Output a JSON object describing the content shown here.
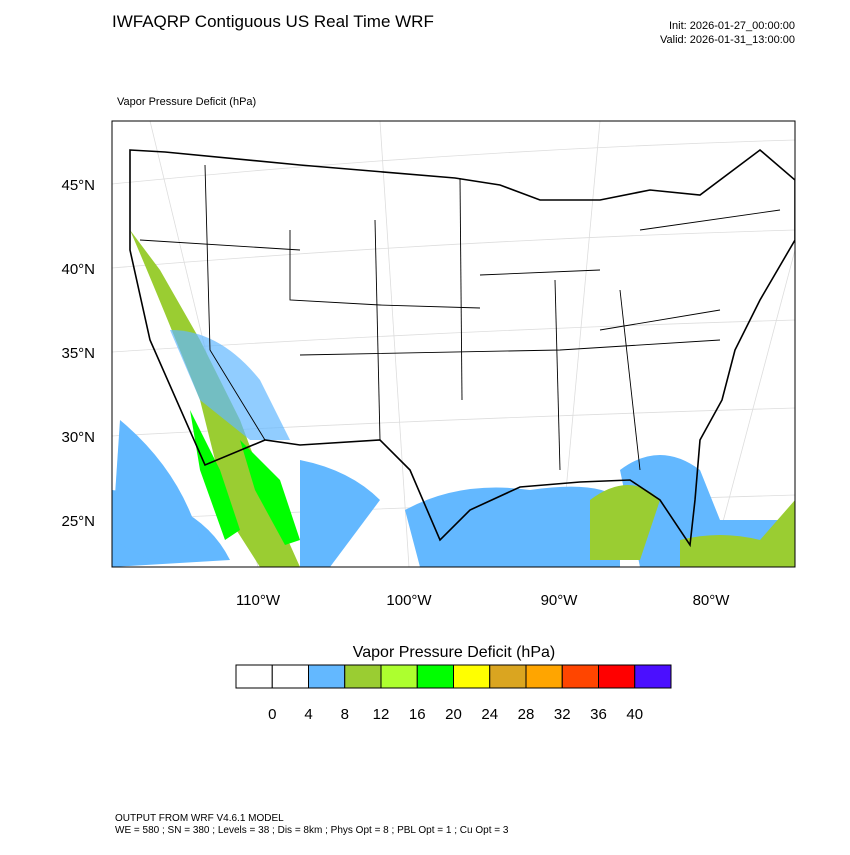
{
  "header": {
    "title": "IWFAQRP Contiguous US Real Time WRF",
    "init": "Init: 2026-01-27_00:00:00",
    "valid": "Valid: 2026-01-31_13:00:00"
  },
  "map": {
    "subtitle": "Vapor Pressure Deficit   (hPa)",
    "lat_labels": [
      "45°N",
      "40°N",
      "35°N",
      "30°N",
      "25°N"
    ],
    "lon_labels": [
      "110°W",
      "100°W",
      "90°W",
      "80°W"
    ]
  },
  "colorbar": {
    "title": "Vapor Pressure Deficit  (hPa)",
    "levels": [
      0,
      4,
      8,
      12,
      16,
      20,
      24,
      28,
      32,
      36,
      40
    ],
    "colors": [
      "#ffffff",
      "#ffffff",
      "#63b8ff",
      "#9acd32",
      "#adff2f",
      "#00ff00",
      "#ffff00",
      "#daa520",
      "#ffa500",
      "#ff4500",
      "#ff0000",
      "#4b0fff"
    ]
  },
  "footer": {
    "line1": "OUTPUT FROM WRF V4.6.1 MODEL",
    "line2": "WE = 580 ; SN = 380 ; Levels = 38 ; Dis = 8km ; Phys Opt = 8 ; PBL Opt = 1 ; Cu Opt = 3"
  }
}
